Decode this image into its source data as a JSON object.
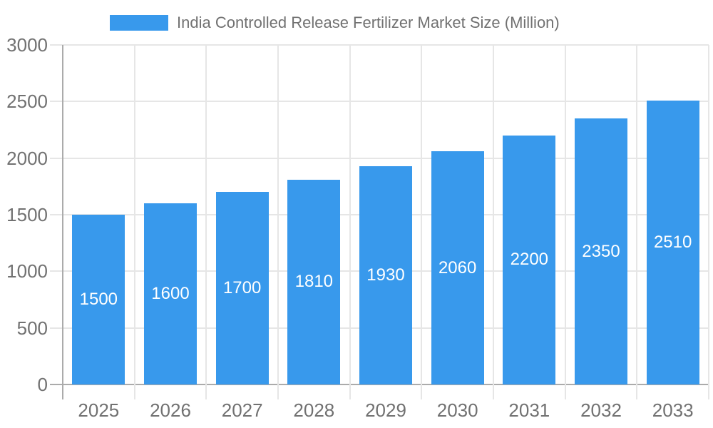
{
  "legend": {
    "label": "India Controlled Release Fertilizer Market Size (Million)"
  },
  "chart_data": {
    "type": "bar",
    "title": "India Controlled Release Fertilizer Market Size (Million)",
    "categories": [
      "2025",
      "2026",
      "2027",
      "2028",
      "2029",
      "2030",
      "2031",
      "2032",
      "2033"
    ],
    "values": [
      1500,
      1600,
      1700,
      1810,
      1930,
      2060,
      2200,
      2350,
      2510
    ],
    "xlabel": "",
    "ylabel": "",
    "ylim": [
      0,
      3000
    ],
    "yticks": [
      0,
      500,
      1000,
      1500,
      2000,
      2500,
      3000
    ],
    "grid": true,
    "legend_position": "top",
    "colors": {
      "bar": "#3899EC",
      "bar_label_text": "#FFFFFF",
      "axis_text": "#717171",
      "grid_line": "#E6E6E6",
      "axis_line": "#ABABAB",
      "background": "#FFFFFF"
    }
  }
}
